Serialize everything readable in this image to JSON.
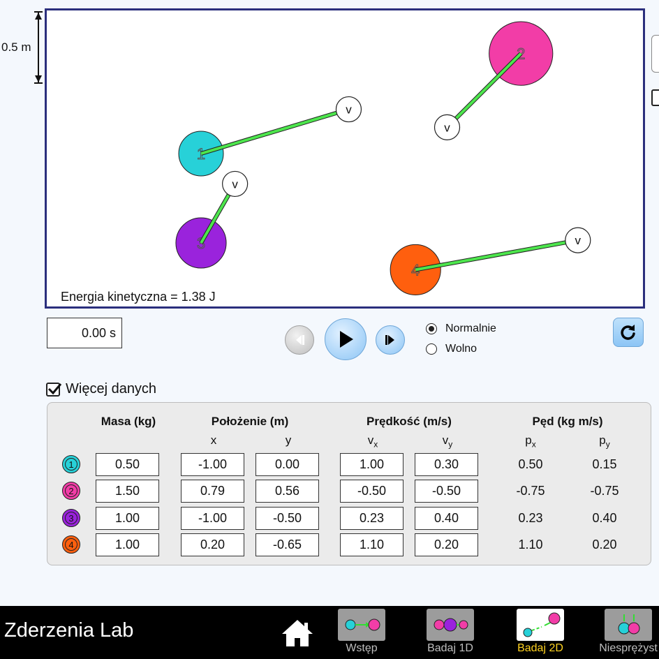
{
  "scale": {
    "label": "0.5 m"
  },
  "play_area": {
    "kinetic_energy": "Energia kinetyczna = 1.38 J",
    "balls": [
      {
        "id": "1",
        "color": "#27d1d8",
        "x_m": -1.0,
        "y_m": 0.0,
        "vx": 1.0,
        "vy": 0.3
      },
      {
        "id": "2",
        "color": "#f23da7",
        "x_m": 0.79,
        "y_m": 0.56,
        "vx": -0.5,
        "vy": -0.5
      },
      {
        "id": "3",
        "color": "#9a23dc",
        "x_m": -1.0,
        "y_m": -0.5,
        "vx": 0.23,
        "vy": 0.4
      },
      {
        "id": "4",
        "color": "#ff5f0e",
        "x_m": 0.2,
        "y_m": -0.65,
        "vx": 1.1,
        "vy": 0.2
      }
    ],
    "velocity_label": "v",
    "arrow_color": "#4de64d"
  },
  "controls": {
    "time": "0.00 s",
    "speed_options": [
      "Normalnie",
      "Wolno"
    ],
    "selected_speed": "Normalnie"
  },
  "more_data": {
    "label": "Więcej danych",
    "checked": true
  },
  "table": {
    "headers": {
      "mass": "Masa (kg)",
      "position": "Położenie (m)",
      "velocity": "Prędkość (m/s)",
      "momentum": "Pęd (kg m/s)"
    },
    "sub_headers": {
      "x": "x",
      "y": "y",
      "vx_base": "v",
      "vx_sub": "x",
      "vy_base": "v",
      "vy_sub": "y",
      "px_base": "p",
      "px_sub": "x",
      "py_base": "p",
      "py_sub": "y"
    },
    "rows": [
      {
        "ball": "1",
        "color": "#27d1d8",
        "mass": "0.50",
        "x": "-1.00",
        "y": "0.00",
        "vx": "1.00",
        "vy": "0.30",
        "px": "0.50",
        "py": "0.15"
      },
      {
        "ball": "2",
        "color": "#f23da7",
        "mass": "1.50",
        "x": "0.79",
        "y": "0.56",
        "vx": "-0.50",
        "vy": "-0.50",
        "px": "-0.75",
        "py": "-0.75"
      },
      {
        "ball": "3",
        "color": "#9a23dc",
        "mass": "1.00",
        "x": "-1.00",
        "y": "-0.50",
        "vx": "0.23",
        "vy": "0.40",
        "px": "0.23",
        "py": "0.40"
      },
      {
        "ball": "4",
        "color": "#ff5f0e",
        "mass": "1.00",
        "x": "0.20",
        "y": "-0.65",
        "vx": "1.10",
        "vy": "0.20",
        "px": "1.10",
        "py": "0.20"
      }
    ]
  },
  "navbar": {
    "title": "Zderzenia Lab",
    "tabs": [
      {
        "label": "Wstęp",
        "active": false
      },
      {
        "label": "Badaj 1D",
        "active": false
      },
      {
        "label": "Badaj 2D",
        "active": true
      },
      {
        "label": "Niesprężyst",
        "active": false
      }
    ]
  }
}
